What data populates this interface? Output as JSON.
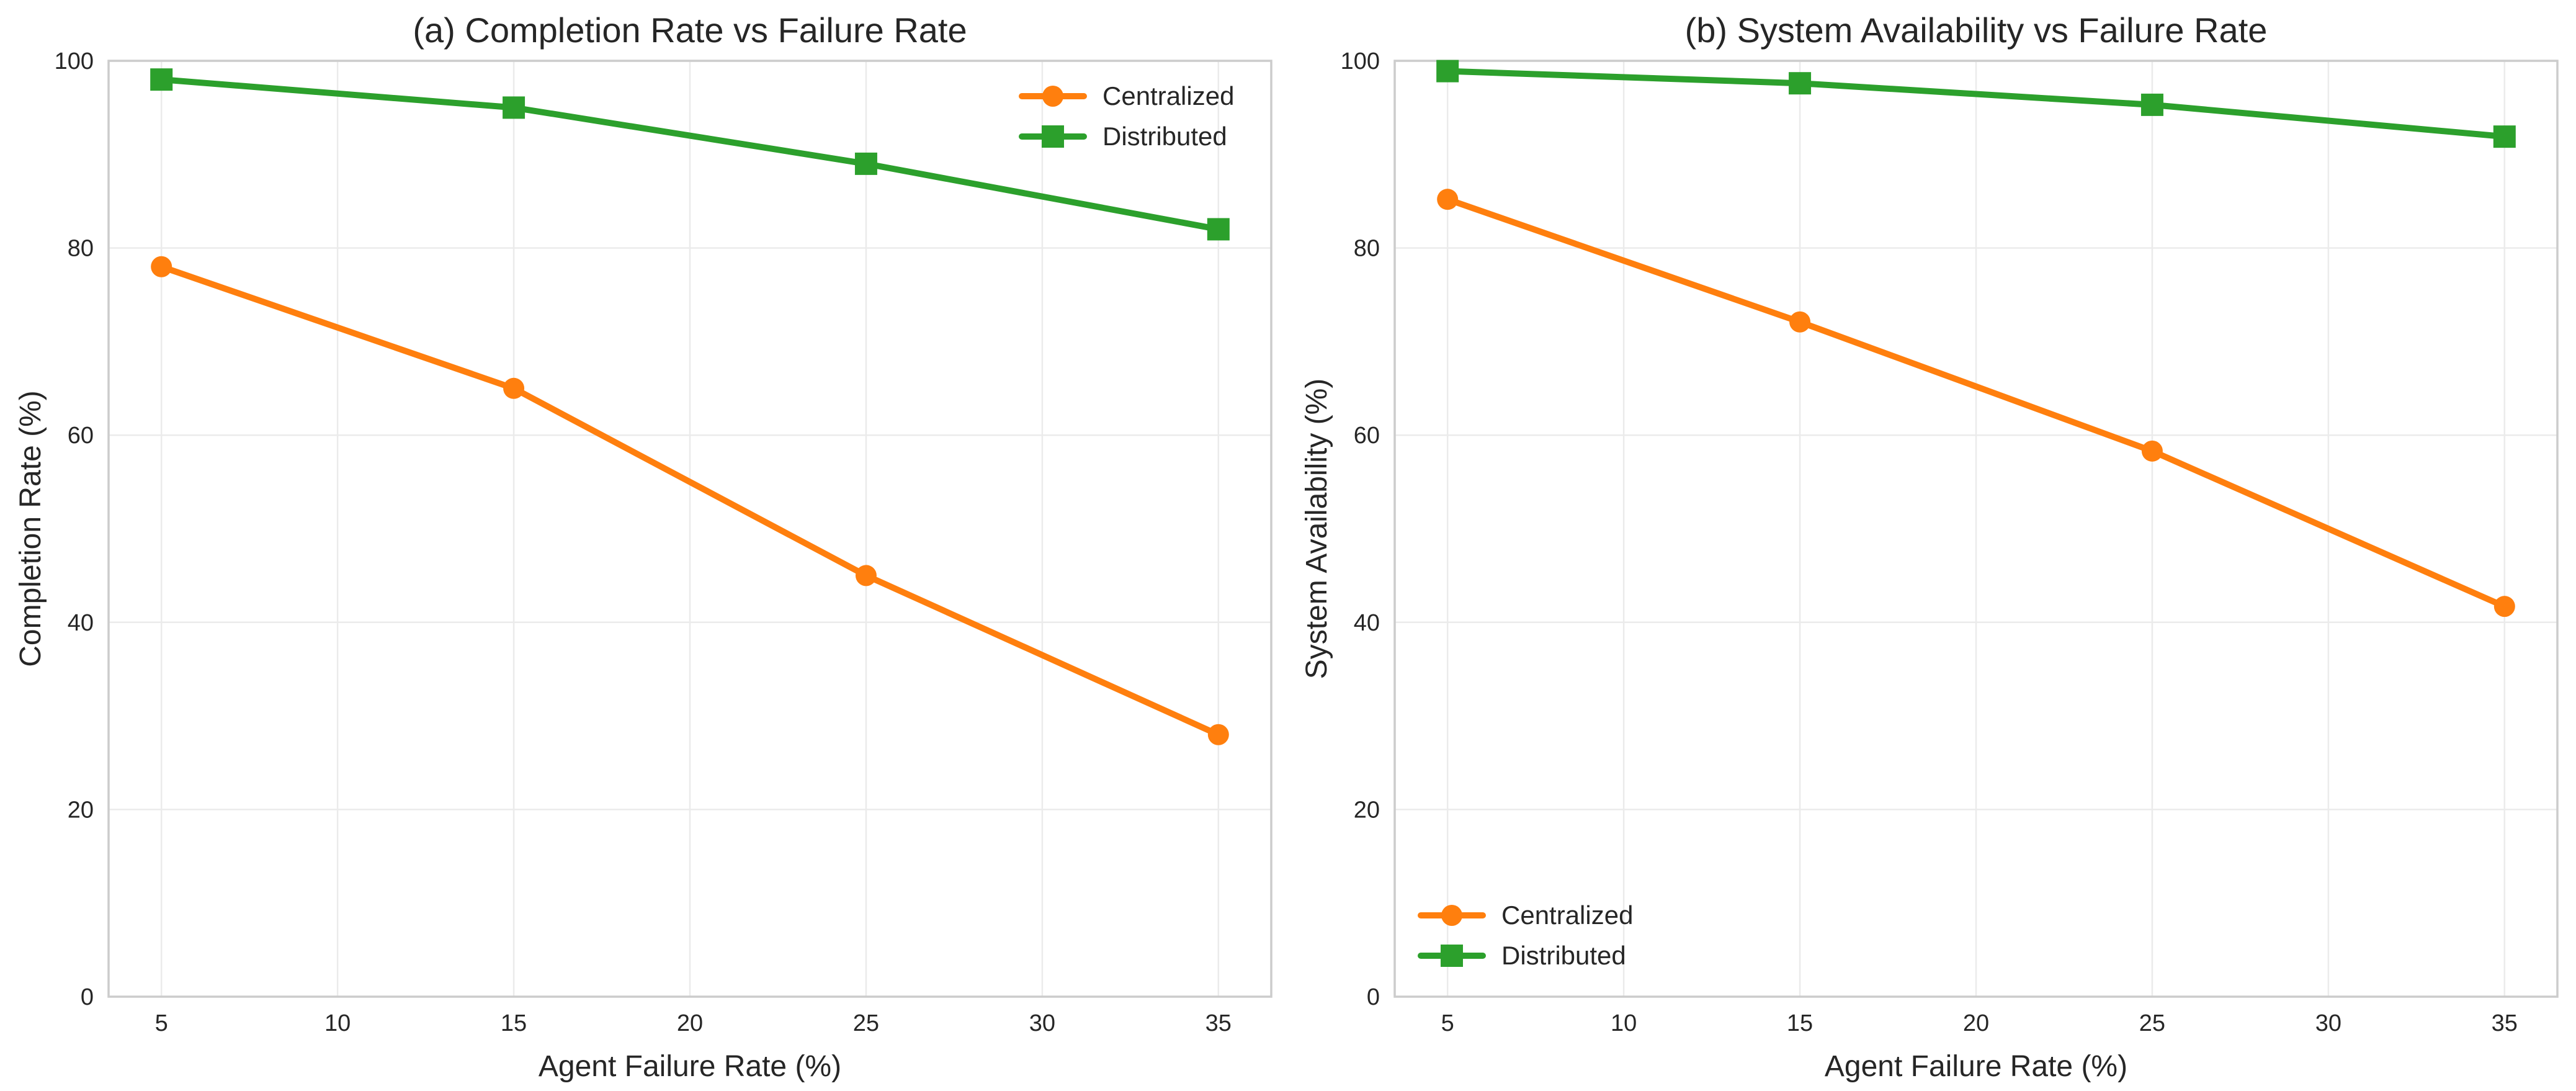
{
  "chart_data": [
    {
      "type": "line",
      "title": "(a) Completion Rate vs Failure Rate",
      "xlabel": "Agent Failure Rate (%)",
      "ylabel": "Completion Rate (%)",
      "xlim": [
        3.5,
        36.5
      ],
      "ylim": [
        0,
        100
      ],
      "xticks": [
        5,
        10,
        15,
        20,
        25,
        30,
        35
      ],
      "yticks": [
        0,
        20,
        40,
        60,
        80,
        100
      ],
      "grid": true,
      "legend_position": "top-right",
      "x": [
        5,
        15,
        25,
        35
      ],
      "series": [
        {
          "name": "Centralized",
          "values": [
            78,
            65,
            45,
            28
          ],
          "color": "#ff7f0e",
          "marker": "circle"
        },
        {
          "name": "Distributed",
          "values": [
            98,
            95,
            89,
            82
          ],
          "color": "#2ca02c",
          "marker": "square"
        }
      ]
    },
    {
      "type": "line",
      "title": "(b) System Availability vs Failure Rate",
      "xlabel": "Agent Failure Rate (%)",
      "ylabel": "System Availability (%)",
      "xlim": [
        3.5,
        36.5
      ],
      "ylim": [
        0,
        100
      ],
      "xticks": [
        5,
        10,
        15,
        20,
        25,
        30,
        35
      ],
      "yticks": [
        0,
        20,
        40,
        60,
        80,
        100
      ],
      "grid": true,
      "legend_position": "bottom-left",
      "x": [
        5,
        15,
        25,
        35
      ],
      "series": [
        {
          "name": "Centralized",
          "values": [
            85.2,
            72.1,
            58.3,
            41.7
          ],
          "color": "#ff7f0e",
          "marker": "circle"
        },
        {
          "name": "Distributed",
          "values": [
            98.9,
            97.6,
            95.3,
            91.9
          ],
          "color": "#2ca02c",
          "marker": "square"
        }
      ]
    }
  ]
}
